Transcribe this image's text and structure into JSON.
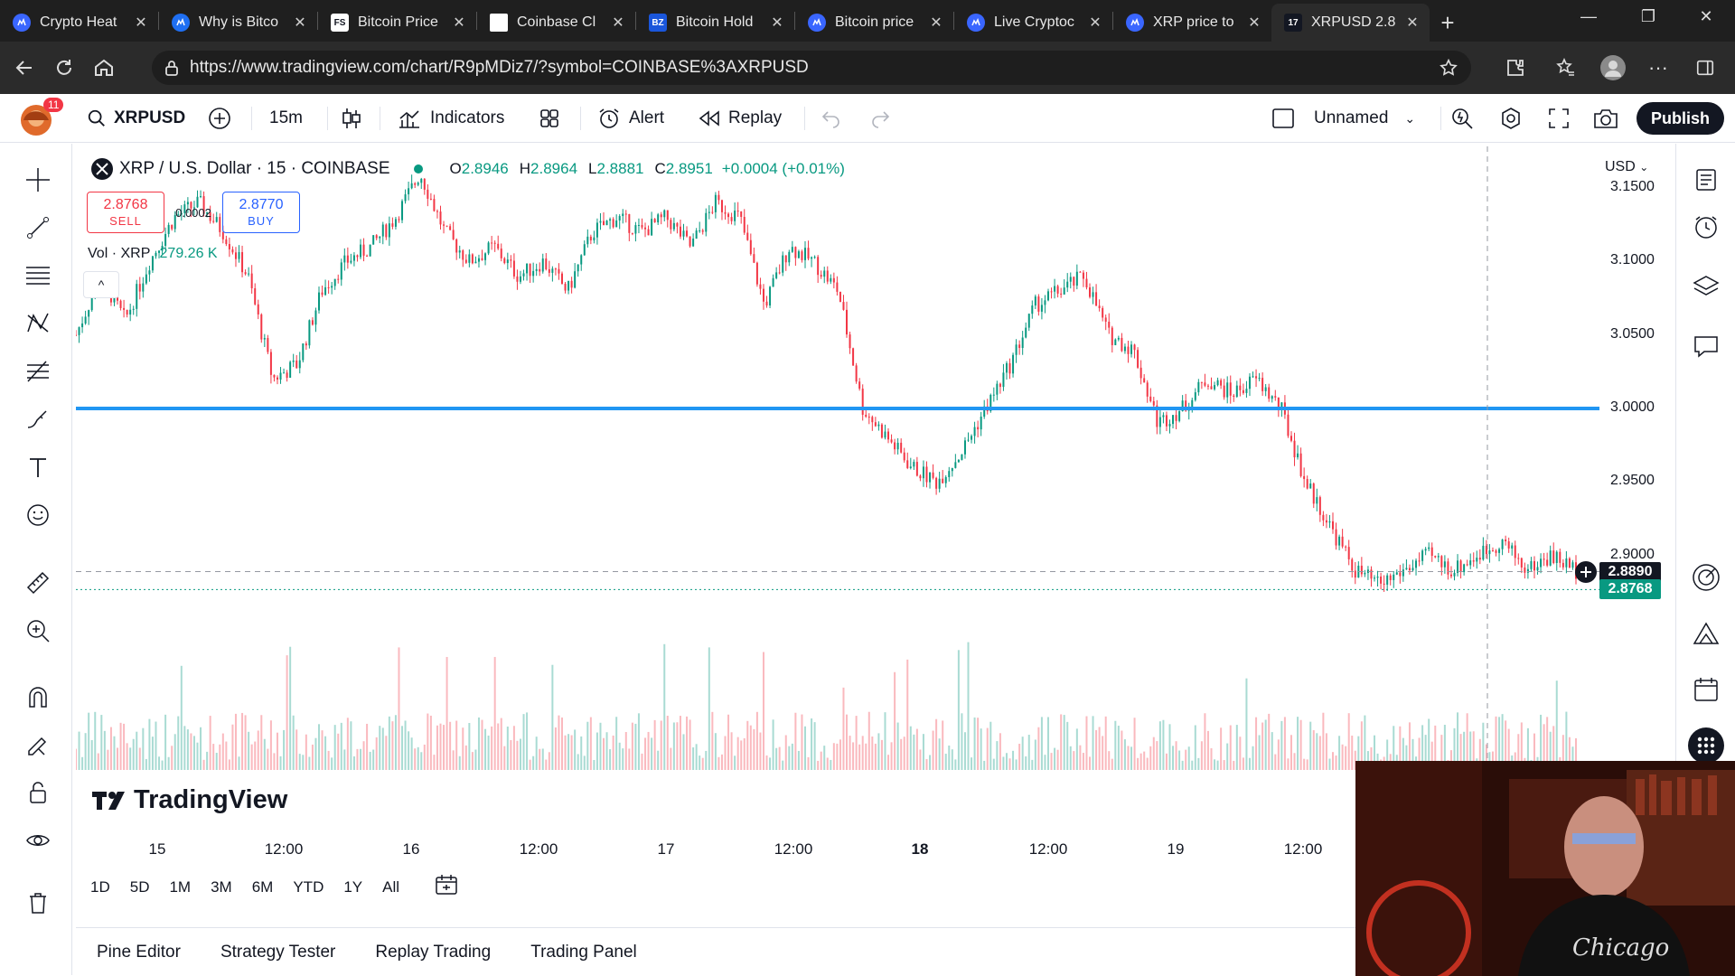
{
  "browser": {
    "tabs": [
      {
        "title": "Crypto Heat",
        "icon_color": "#3a66ff",
        "icon": "cmc-icon"
      },
      {
        "title": "Why is Bitco",
        "icon_color": "#1f6ff2",
        "icon": "c-icon"
      },
      {
        "title": "Bitcoin Price",
        "icon_color": "#ffffff",
        "icon": "fs-icon"
      },
      {
        "title": "Coinbase Cl",
        "icon_color": "#ffffff",
        "icon": "page-icon"
      },
      {
        "title": "Bitcoin Hold",
        "icon_color": "#1a56db",
        "icon": "bz-icon"
      },
      {
        "title": "Bitcoin price",
        "icon_color": "#3a66ff",
        "icon": "cmc-icon"
      },
      {
        "title": "Live Cryptoc",
        "icon_color": "#3a66ff",
        "icon": "cmc-icon"
      },
      {
        "title": "XRP price to",
        "icon_color": "#3a66ff",
        "icon": "cmc-icon"
      },
      {
        "title": "XRPUSD 2.8",
        "icon_color": "#131722",
        "icon": "tv-icon",
        "active": true
      }
    ],
    "fav_labels": {
      "fs": "FS",
      "bz": "BZ",
      "tv": "17"
    },
    "url": "https://www.tradingview.com/chart/R9pMDiz7/?symbol=COINBASE%3AXRPUSD"
  },
  "toolbar": {
    "badge": "11",
    "symbol": "XRPUSD",
    "interval": "15m",
    "indicators": "Indicators",
    "alert": "Alert",
    "replay": "Replay",
    "layout_name": "Unnamed",
    "publish": "Publish"
  },
  "legend": {
    "title": "XRP / U.S. Dollar · 15 · COINBASE",
    "o": "2.8946",
    "h": "2.8964",
    "l": "2.8881",
    "c": "2.8951",
    "change": "+0.0004 (+0.01%)",
    "sell_price": "2.8768",
    "sell_label": "SELL",
    "spread": "0.0002",
    "buy_price": "2.8770",
    "buy_label": "BUY",
    "vol_label": "Vol · XRP",
    "vol_value": "279.26 K",
    "collapse": "^"
  },
  "axis": {
    "currency": "USD",
    "y_ticks": [
      "3.1500",
      "3.1000",
      "3.0500",
      "3.0000",
      "2.9500",
      "2.9000"
    ],
    "price_tag_crosshair": "2.8890",
    "price_tag_last": "2.8768",
    "x_ticks": [
      {
        "label": "15",
        "bold": false
      },
      {
        "label": "12:00",
        "bold": false
      },
      {
        "label": "16",
        "bold": false
      },
      {
        "label": "12:00",
        "bold": false
      },
      {
        "label": "17",
        "bold": false
      },
      {
        "label": "12:00",
        "bold": false
      },
      {
        "label": "18",
        "bold": true
      },
      {
        "label": "12:00",
        "bold": false
      },
      {
        "label": "19",
        "bold": false
      },
      {
        "label": "12:00",
        "bold": false
      }
    ]
  },
  "chart_data": {
    "type": "candlestick",
    "symbol": "XRP / U.S. Dollar · 15 · COINBASE",
    "ylim": [
      2.87,
      3.17
    ],
    "horizontal_line": 3.0,
    "y_ticks": [
      3.15,
      3.1,
      3.05,
      3.0,
      2.95,
      2.9
    ],
    "x_ticks": [
      "15",
      "12:00",
      "16",
      "12:00",
      "17",
      "12:00",
      "18",
      "12:00",
      "19",
      "12:00"
    ],
    "close_path": [
      3.05,
      3.09,
      3.06,
      3.1,
      3.13,
      3.14,
      3.12,
      3.09,
      3.02,
      3.03,
      3.08,
      3.1,
      3.11,
      3.13,
      3.16,
      3.12,
      3.1,
      3.11,
      3.09,
      3.1,
      3.08,
      3.12,
      3.13,
      3.12,
      3.13,
      3.11,
      3.14,
      3.13,
      3.07,
      3.11,
      3.1,
      3.08,
      3.0,
      2.98,
      2.96,
      2.95,
      2.97,
      3.0,
      3.03,
      3.07,
      3.08,
      3.09,
      3.05,
      3.04,
      2.99,
      3.0,
      3.02,
      3.01,
      3.02,
      3.0,
      2.95,
      2.92,
      2.89,
      2.88,
      2.89,
      2.9,
      2.89,
      2.9,
      2.91,
      2.89,
      2.9,
      2.89
    ]
  },
  "ranges": [
    "1D",
    "5D",
    "1M",
    "3M",
    "6M",
    "YTD",
    "1Y",
    "All"
  ],
  "bottom_tabs": [
    "Pine Editor",
    "Strategy Tester",
    "Replay Trading",
    "Trading Panel"
  ],
  "brand": "TradingView",
  "colors": {
    "up": "#089981",
    "down": "#f23645",
    "line": "#2196f3",
    "accent": "#2962ff"
  }
}
